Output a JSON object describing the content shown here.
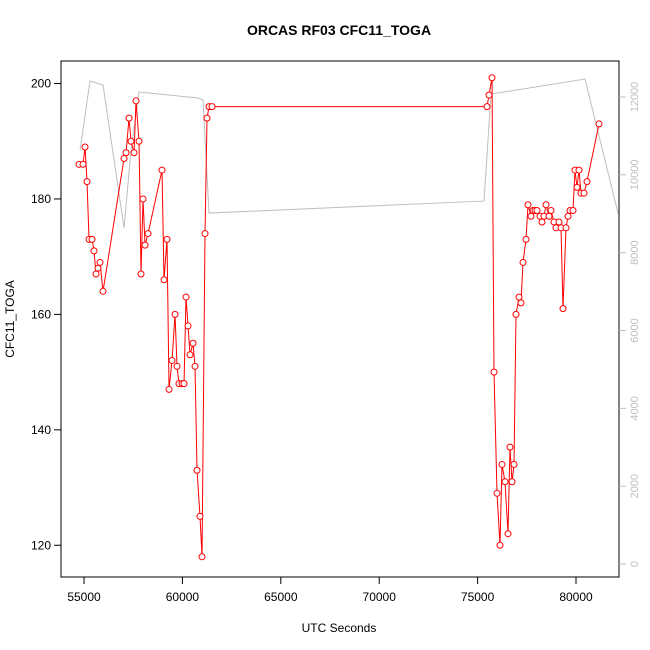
{
  "chart_data": {
    "type": "line",
    "title": "ORCAS RF03 CFC11_TOGA",
    "xlabel": "UTC Seconds",
    "ylabel": "CFC11_TOGA",
    "xlim": [
      53830,
      82185
    ],
    "ylim": [
      114.5,
      203.9
    ],
    "y2lim": [
      -334,
      12925
    ],
    "xticks": [
      55000,
      60000,
      65000,
      70000,
      75000,
      80000
    ],
    "yticks": [
      120,
      140,
      160,
      180,
      200
    ],
    "y2ticks": [
      0,
      2000,
      4000,
      6000,
      8000,
      10000,
      12000
    ],
    "series": [
      {
        "color": "#ff0000",
        "markers": true,
        "x": [
          54746,
          54949,
          55051,
          55152,
          55254,
          55407,
          55508,
          55610,
          55711,
          55813,
          55965,
          57033,
          57134,
          57287,
          57388,
          57541,
          57642,
          57795,
          57896,
          57998,
          58100,
          58252,
          58963,
          59065,
          59217,
          59319,
          59472,
          59624,
          59726,
          59827,
          59980,
          60081,
          60183,
          60285,
          60386,
          60539,
          60640,
          60742,
          60894,
          60996,
          61148,
          61250,
          61352,
          61504,
          75478,
          75579,
          75732,
          75833,
          75986,
          76138,
          76240,
          76392,
          76545,
          76646,
          76748,
          76850,
          76951,
          77104,
          77205,
          77307,
          77459,
          77561,
          77713,
          77815,
          77917,
          78018,
          78171,
          78272,
          78374,
          78476,
          78628,
          78730,
          78882,
          78984,
          79136,
          79238,
          79339,
          79492,
          79594,
          79695,
          79848,
          79949,
          80051,
          80152,
          80254,
          80407,
          80559,
          81169
        ],
        "values": [
          186,
          186,
          189,
          183,
          173,
          173,
          171,
          167,
          168,
          169,
          164,
          187,
          188,
          194,
          190,
          188,
          197,
          190,
          167,
          180,
          172,
          174,
          185,
          166,
          173,
          147,
          152,
          160,
          151,
          148,
          148,
          148,
          163,
          158,
          153,
          155,
          151,
          133,
          125,
          118,
          174,
          194,
          196,
          196,
          196,
          198,
          201,
          150,
          129,
          120,
          134,
          131,
          122,
          137,
          131,
          134,
          160,
          163,
          162,
          169,
          173,
          179,
          177,
          178,
          178,
          178,
          177,
          176,
          177,
          179,
          177,
          178,
          176,
          175,
          176,
          175,
          161,
          175,
          177,
          178,
          178,
          185,
          182,
          185,
          181,
          181,
          183,
          193
        ]
      },
      {
        "color": "#bebebe",
        "axis": "y2",
        "markers": false,
        "x": [
          54797,
          55305,
          55965,
          56676,
          57033,
          57388,
          57795,
          60793,
          61047,
          61352,
          75326,
          75681,
          80457,
          82134
        ],
        "values": [
          10637,
          12410,
          12307,
          9866,
          8633,
          10637,
          12127,
          11973,
          11922,
          9018,
          9326,
          12076,
          12461,
          9018
        ]
      }
    ]
  }
}
